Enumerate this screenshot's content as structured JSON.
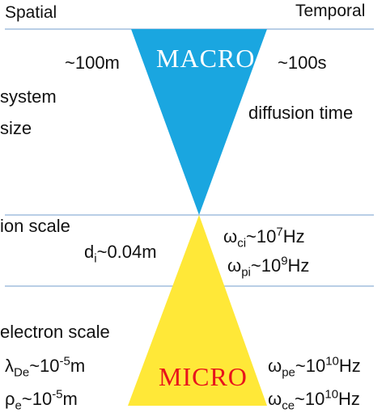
{
  "header": {
    "spatial": "Spatial",
    "temporal": "Temporal"
  },
  "macro": {
    "label": "MACRO",
    "label_color": "#ffffff",
    "fill_color": "#1aa6e0",
    "size": "~100m",
    "time": "~100s"
  },
  "micro": {
    "label": "MICRO",
    "label_color": "#e8141b",
    "fill_color": "#ffe838"
  },
  "left_labels": {
    "system_size_line1": "system",
    "system_size_line2": "size",
    "ion_scale": "ion scale",
    "electron_scale": "electron scale"
  },
  "right_labels": {
    "diffusion_time": "diffusion time"
  },
  "ion": {
    "di": {
      "sym": "d",
      "sub": "i",
      "rest": "~0.04m"
    },
    "wci": {
      "sym": "ω",
      "sub": "ci",
      "mid": "~10",
      "sup": "7",
      "unit": "Hz"
    },
    "wpi": {
      "sym": "ω",
      "sub": "pi",
      "mid": "~10",
      "sup": "9",
      "unit": "Hz"
    }
  },
  "electron": {
    "lde": {
      "sym": "λ",
      "sub": "De",
      "mid": "~10",
      "sup": "-5",
      "unit": "m"
    },
    "rhoe": {
      "sym": "ρ",
      "sub": "e",
      "mid": "~10",
      "sup": "-5",
      "unit": "m"
    },
    "wpe": {
      "sym": "ω",
      "sub": "pe",
      "mid": "~10",
      "sup": "10",
      "unit": "Hz"
    },
    "wce": {
      "sym": "ω",
      "sub": "ce",
      "mid": "~10",
      "sup": "10",
      "unit": "Hz"
    }
  },
  "style": {
    "line_color": "#8fb0d6"
  }
}
